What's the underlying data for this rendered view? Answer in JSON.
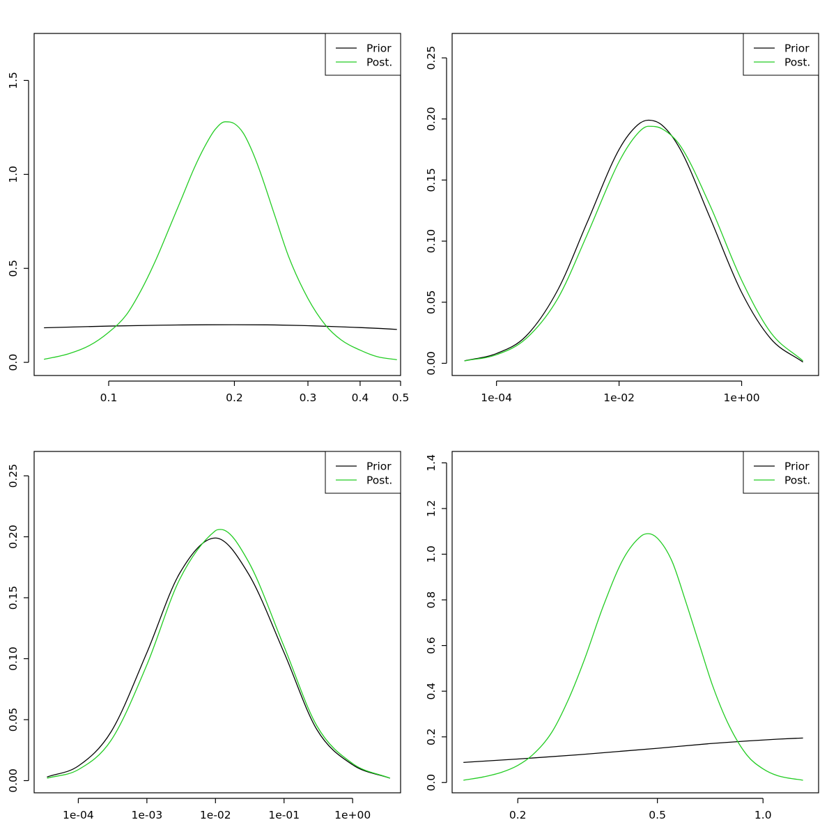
{
  "chart_data": [
    {
      "type": "line",
      "x_scale": "log",
      "xlim": [
        0.0663,
        0.5
      ],
      "ylim": [
        -0.07,
        1.75
      ],
      "x_ticks": [
        0.1,
        0.2,
        0.3,
        0.4,
        0.5
      ],
      "x_tick_labels": [
        "0.1",
        "0.2",
        "0.3",
        "0.4",
        "0.5"
      ],
      "y_ticks": [
        0,
        0.5,
        1,
        1.5
      ],
      "y_tick_labels": [
        "0.0",
        "0.5",
        "1.0",
        "1.5"
      ],
      "legend": {
        "position": "top-right",
        "entries": [
          "Prior",
          "Post."
        ]
      },
      "series": [
        {
          "name": "Prior",
          "color": "#000000",
          "x": [
            0.07,
            0.1,
            0.15,
            0.2,
            0.25,
            0.3,
            0.35,
            0.4,
            0.45,
            0.49
          ],
          "y": [
            0.184,
            0.193,
            0.199,
            0.2,
            0.199,
            0.195,
            0.19,
            0.185,
            0.18,
            0.175
          ]
        },
        {
          "name": "Post.",
          "color": "#22cc22",
          "x": [
            0.07,
            0.08,
            0.09,
            0.1,
            0.11,
            0.12,
            0.13,
            0.14,
            0.15,
            0.16,
            0.17,
            0.18,
            0.19,
            0.2,
            0.21,
            0.22,
            0.23,
            0.25,
            0.27,
            0.3,
            0.33,
            0.36,
            0.4,
            0.44,
            0.49
          ],
          "y": [
            0.016,
            0.045,
            0.09,
            0.16,
            0.25,
            0.39,
            0.55,
            0.72,
            0.88,
            1.03,
            1.15,
            1.24,
            1.28,
            1.27,
            1.22,
            1.13,
            1.02,
            0.78,
            0.56,
            0.34,
            0.2,
            0.12,
            0.065,
            0.03,
            0.014
          ]
        }
      ]
    },
    {
      "type": "line",
      "x_scale": "log",
      "xlim": [
        1.89e-05,
        18.0
      ],
      "ylim": [
        -0.01,
        0.27
      ],
      "x_ticks": [
        0.0001,
        0.01,
        1
      ],
      "x_tick_labels": [
        "1e-04",
        "1e-02",
        "1e+00"
      ],
      "y_ticks": [
        0,
        0.05,
        0.1,
        0.15,
        0.2,
        0.25
      ],
      "y_tick_labels": [
        "0.00",
        "0.05",
        "0.10",
        "0.15",
        "0.20",
        "0.25"
      ],
      "legend": {
        "position": "top-right",
        "entries": [
          "Prior",
          "Post."
        ]
      },
      "series": [
        {
          "name": "Prior",
          "color": "#000000",
          "x": [
            3e-05,
            0.0001,
            0.0003,
            0.001,
            0.003,
            0.01,
            0.02,
            0.03,
            0.05,
            0.1,
            0.3,
            1,
            3,
            10
          ],
          "y": [
            0.002,
            0.008,
            0.022,
            0.06,
            0.115,
            0.175,
            0.195,
            0.199,
            0.195,
            0.175,
            0.12,
            0.058,
            0.02,
            0.001
          ]
        },
        {
          "name": "Post.",
          "color": "#22cc22",
          "x": [
            3e-05,
            0.0001,
            0.0003,
            0.001,
            0.003,
            0.01,
            0.02,
            0.03,
            0.05,
            0.1,
            0.3,
            1,
            3,
            10
          ],
          "y": [
            0.002,
            0.007,
            0.02,
            0.053,
            0.105,
            0.165,
            0.188,
            0.194,
            0.192,
            0.178,
            0.13,
            0.068,
            0.025,
            0.002
          ]
        }
      ]
    },
    {
      "type": "line",
      "x_scale": "log",
      "xlim": [
        2.27e-05,
        5.0
      ],
      "ylim": [
        -0.01,
        0.27
      ],
      "x_ticks": [
        0.0001,
        0.001,
        0.01,
        0.1,
        1
      ],
      "x_tick_labels": [
        "1e-04",
        "1e-03",
        "1e-02",
        "1e-01",
        "1e+00"
      ],
      "y_ticks": [
        0,
        0.05,
        0.1,
        0.15,
        0.2,
        0.25
      ],
      "y_tick_labels": [
        "0.00",
        "0.05",
        "0.10",
        "0.15",
        "0.20",
        "0.25"
      ],
      "legend": {
        "position": "top-right",
        "entries": [
          "Prior",
          "Post."
        ]
      },
      "series": [
        {
          "name": "Prior",
          "color": "#000000",
          "x": [
            3.5e-05,
            0.0001,
            0.0003,
            0.001,
            0.003,
            0.01,
            0.03,
            0.1,
            0.3,
            1,
            3.5
          ],
          "y": [
            0.003,
            0.012,
            0.04,
            0.105,
            0.17,
            0.199,
            0.17,
            0.105,
            0.042,
            0.013,
            0.002
          ]
        },
        {
          "name": "Post.",
          "color": "#22cc22",
          "x": [
            3.5e-05,
            0.0001,
            0.0003,
            0.001,
            0.003,
            0.01,
            0.012,
            0.03,
            0.1,
            0.3,
            1,
            3.5
          ],
          "y": [
            0.002,
            0.009,
            0.033,
            0.095,
            0.165,
            0.205,
            0.206,
            0.18,
            0.11,
            0.045,
            0.014,
            0.002
          ]
        }
      ]
    },
    {
      "type": "line",
      "x_scale": "log",
      "xlim": [
        0.13,
        1.44
      ],
      "ylim": [
        -0.045,
        1.45
      ],
      "x_ticks": [
        0.2,
        0.5,
        1.0
      ],
      "x_tick_labels": [
        "0.2",
        "0.5",
        "1.0"
      ],
      "y_ticks": [
        0,
        0.2,
        0.4,
        0.6,
        0.8,
        1.0,
        1.2,
        1.4
      ],
      "y_tick_labels": [
        "0.0",
        "0.2",
        "0.4",
        "0.6",
        "0.8",
        "1.0",
        "1.2",
        "1.4"
      ],
      "legend": {
        "position": "top-right",
        "entries": [
          "Prior",
          "Post."
        ]
      },
      "series": [
        {
          "name": "Prior",
          "color": "#000000",
          "x": [
            0.14,
            0.2,
            0.3,
            0.5,
            0.7,
            0.9,
            1.1,
            1.3
          ],
          "y": [
            0.088,
            0.103,
            0.122,
            0.15,
            0.17,
            0.182,
            0.19,
            0.195
          ]
        },
        {
          "name": "Post.",
          "color": "#22cc22",
          "x": [
            0.14,
            0.16,
            0.18,
            0.2,
            0.22,
            0.25,
            0.28,
            0.31,
            0.35,
            0.4,
            0.45,
            0.47,
            0.5,
            0.55,
            0.6,
            0.66,
            0.72,
            0.8,
            0.9,
            1.0,
            1.1,
            1.3
          ],
          "y": [
            0.01,
            0.025,
            0.045,
            0.075,
            0.12,
            0.22,
            0.37,
            0.54,
            0.77,
            0.98,
            1.08,
            1.09,
            1.07,
            0.97,
            0.8,
            0.6,
            0.42,
            0.25,
            0.12,
            0.06,
            0.03,
            0.01
          ]
        }
      ]
    }
  ]
}
